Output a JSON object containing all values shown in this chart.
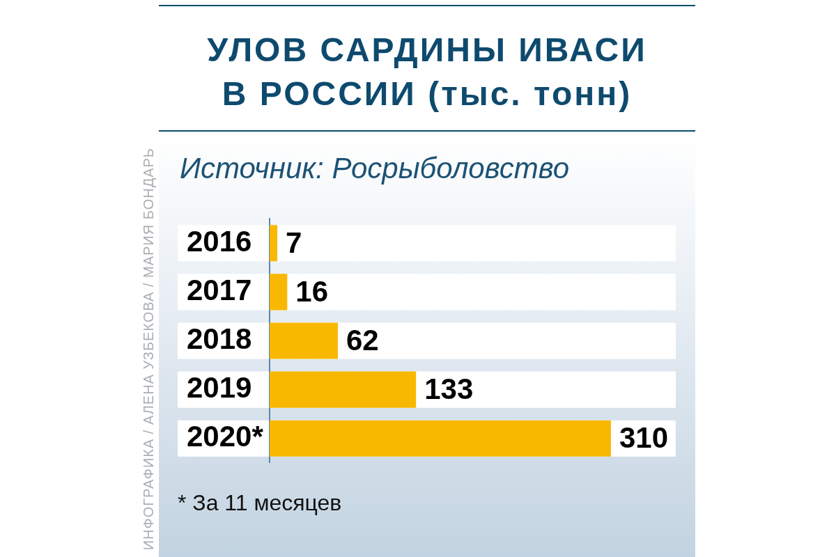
{
  "chart_data": {
    "type": "bar",
    "orientation": "horizontal",
    "title": "УЛОВ САРДИНЫ ИВАСИ В РОССИИ (тыс. тонн)",
    "subtitle": "Источник: Росрыболовство",
    "categories": [
      "2016",
      "2017",
      "2018",
      "2019",
      "2020*"
    ],
    "values": [
      7,
      16,
      62,
      133,
      310
    ],
    "color": "#f9b800",
    "data_labels": true,
    "tick_labels": "y",
    "annotations": [
      "* За 11 месяцев",
      "ИНФОГРАФИКА / АЛЕНА УЗБЕКОВА / МАРИЯ БОНДАРЬ"
    ]
  }
}
